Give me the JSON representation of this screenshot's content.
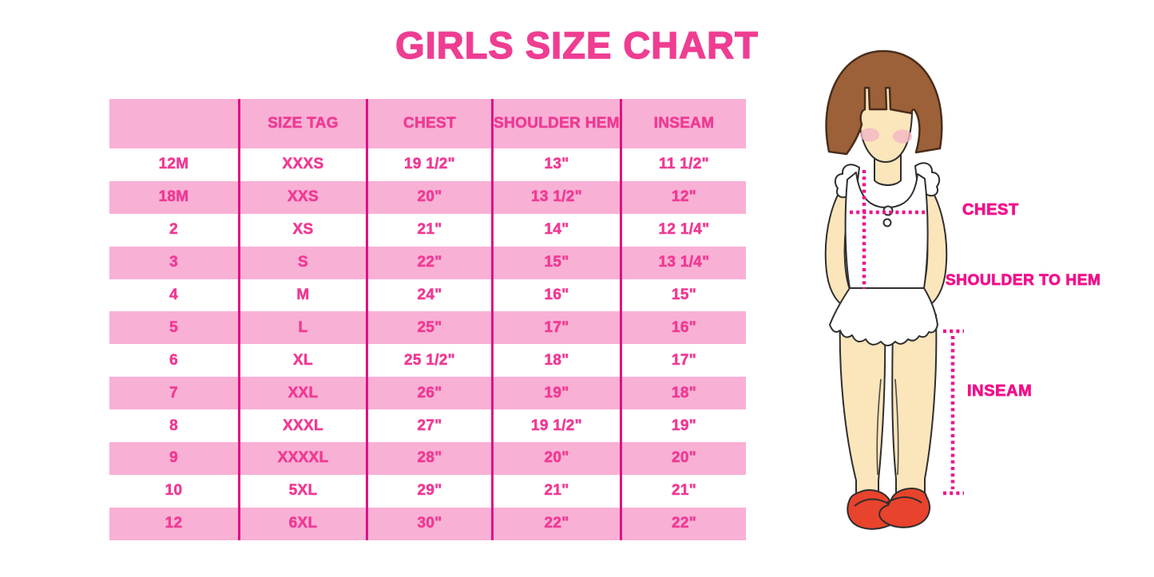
{
  "title": "GIRLS SIZE CHART",
  "table": {
    "headers": [
      "",
      "SIZE TAG",
      "CHEST",
      "SHOULDER HEM",
      "INSEAM"
    ],
    "rows": [
      [
        "12M",
        "XXXS",
        "19 1/2\"",
        "13\"",
        "11 1/2\""
      ],
      [
        "18M",
        "XXS",
        "20\"",
        "13 1/2\"",
        "12\""
      ],
      [
        "2",
        "XS",
        "21\"",
        "14\"",
        "12 1/4\""
      ],
      [
        "3",
        "S",
        "22\"",
        "15\"",
        "13 1/4\""
      ],
      [
        "4",
        "M",
        "24\"",
        "16\"",
        "15\""
      ],
      [
        "5",
        "L",
        "25\"",
        "17\"",
        "16\""
      ],
      [
        "6",
        "XL",
        "25 1/2\"",
        "18\"",
        "17\""
      ],
      [
        "7",
        "XXL",
        "26\"",
        "19\"",
        "18\""
      ],
      [
        "8",
        "XXXL",
        "27\"",
        "19 1/2\"",
        "19\""
      ],
      [
        "9",
        "XXXXL",
        "28\"",
        "20\"",
        "20\""
      ],
      [
        "10",
        "5XL",
        "29\"",
        "21\"",
        "21\""
      ],
      [
        "12",
        "6XL",
        "30\"",
        "22\"",
        "22\""
      ]
    ]
  },
  "figure": {
    "labels": {
      "chest": "CHEST",
      "shoulder_to_hem": "SHOULDER TO HEM",
      "inseam": "INSEAM"
    }
  },
  "colors": {
    "title_pink": "#EF3D92",
    "row_pink": "#F9B0D5",
    "grid_line": "#E01186",
    "cell_text": "#EF3A94",
    "label_pink": "#F2108C",
    "dotted_pink": "#ED148D",
    "hair_brown": "#9C6138",
    "hair_outline": "#4A2D1B",
    "skin": "#FBE5BB",
    "outline_dark": "#2E2E2E",
    "blush": "#F4B6C4",
    "shoe_red": "#E8432C",
    "dress_white": "#FFFFFF"
  }
}
